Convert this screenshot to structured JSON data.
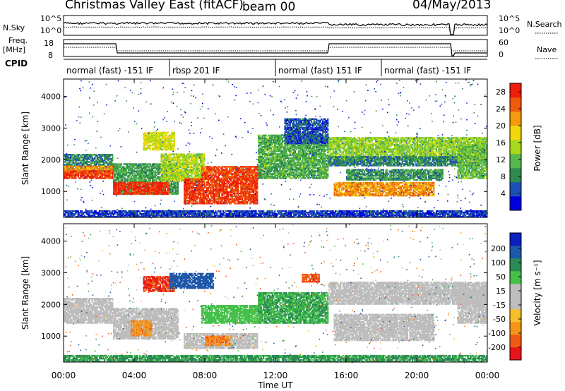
{
  "header": {
    "station": "Christmas Valley East (fitACF)",
    "beam": "beam 00",
    "date": "04/May/2013"
  },
  "panels": {
    "nsky_label": "N.Sky",
    "nsky_ticks": [
      "10^5",
      "10^0"
    ],
    "nsearch_label": "N.Search",
    "nsearch_ticks": [
      "10^5",
      "10^0"
    ],
    "freq_label": "Freq.",
    "freq_unit": "[MHz]",
    "freq_ticks": [
      "18",
      "8"
    ],
    "nave_label": "Nave",
    "nave_ticks": [
      "60",
      "0"
    ],
    "cpid_label": "CPID"
  },
  "modes": [
    {
      "label": "normal (fast) -151 IF",
      "start_h": 0,
      "end_h": 6
    },
    {
      "label": "rbsp 201 IF",
      "start_h": 6,
      "end_h": 12
    },
    {
      "label": "normal (fast) 151 IF",
      "start_h": 12,
      "end_h": 18
    },
    {
      "label": "normal (fast) -151 IF",
      "start_h": 18,
      "end_h": 24
    }
  ],
  "colors": {
    "power": [
      "#0000dd",
      "#1e4fb4",
      "#2f8a4f",
      "#57b84f",
      "#a8d81c",
      "#f0d80b",
      "#f39a0e",
      "#f05a0c",
      "#ee1e0c"
    ],
    "velocity": [
      "#e8141c",
      "#f05a16",
      "#f4951a",
      "#f6c02d",
      "#bdbdbd",
      "#bdbdbd",
      "#45c04b",
      "#2b8a55",
      "#1e58a8",
      "#0a20c0"
    ]
  },
  "chart_data": [
    {
      "type": "heatmap",
      "quantity": "power",
      "xlabel": "Time UT",
      "ylabel": "Slant Range [km]",
      "xlim": [
        0,
        24
      ],
      "ylim": [
        180,
        4550
      ],
      "yticks": [
        "1000",
        "2000",
        "3000",
        "4000"
      ],
      "colorbar": {
        "label": "Power [dB]",
        "ticks": [
          "4",
          "8",
          "12",
          "16",
          "20",
          "24",
          "28"
        ],
        "range": [
          0,
          30
        ]
      },
      "bands": [
        {
          "t0": 0.0,
          "t1": 2.8,
          "r0": 1600,
          "r1": 2200,
          "v": 8
        },
        {
          "t0": 0.0,
          "t1": 2.8,
          "r0": 1500,
          "r1": 1800,
          "v": 22
        },
        {
          "t0": 0.0,
          "t1": 2.8,
          "r0": 1400,
          "r1": 1650,
          "v": 27
        },
        {
          "t0": 2.8,
          "t1": 6.5,
          "r0": 900,
          "r1": 1900,
          "v": 10
        },
        {
          "t0": 2.8,
          "t1": 6.0,
          "r0": 900,
          "r1": 1300,
          "v": 28
        },
        {
          "t0": 4.5,
          "t1": 6.3,
          "r0": 2300,
          "r1": 2900,
          "v": 17
        },
        {
          "t0": 5.5,
          "t1": 8.0,
          "r0": 1300,
          "r1": 2200,
          "v": 15
        },
        {
          "t0": 7.8,
          "t1": 11.2,
          "r0": 1400,
          "r1": 1800,
          "v": 26
        },
        {
          "t0": 6.8,
          "t1": 11.0,
          "r0": 600,
          "r1": 1400,
          "v": 27
        },
        {
          "t0": 11.0,
          "t1": 15.0,
          "r0": 1400,
          "r1": 2800,
          "v": 11
        },
        {
          "t0": 12.5,
          "t1": 15.0,
          "r0": 2500,
          "r1": 3300,
          "v": 5
        },
        {
          "t0": 15.0,
          "t1": 24.0,
          "r0": 2000,
          "r1": 2700,
          "v": 14
        },
        {
          "t0": 15.0,
          "t1": 24.0,
          "r0": 1800,
          "r1": 2100,
          "v": 8
        },
        {
          "t0": 15.3,
          "t1": 21.0,
          "r0": 850,
          "r1": 1300,
          "v": 22
        },
        {
          "t0": 16.0,
          "t1": 21.5,
          "r0": 1350,
          "r1": 1700,
          "v": 9
        },
        {
          "t0": 22.3,
          "t1": 24.0,
          "r0": 1400,
          "r1": 2500,
          "v": 12
        },
        {
          "t0": 0.0,
          "t1": 24.0,
          "r0": 180,
          "r1": 400,
          "v": 4
        }
      ]
    },
    {
      "type": "heatmap",
      "quantity": "velocity",
      "xlabel": "Time UT",
      "ylabel": "Slant Range [km]",
      "xlim": [
        0,
        24
      ],
      "ylim": [
        180,
        4550
      ],
      "xticks": [
        "00:00",
        "04:00",
        "08:00",
        "12:00",
        "16:00",
        "20:00",
        "00:00"
      ],
      "yticks": [
        "1000",
        "2000",
        "3000",
        "4000"
      ],
      "colorbar": {
        "label": "Velocity [m s⁻¹]",
        "ticks": [
          "200",
          "100",
          "50",
          "15",
          "-15",
          "-50",
          "-100",
          "-200"
        ],
        "range": [
          -250,
          250
        ]
      },
      "bands": [
        {
          "t0": 0.0,
          "t1": 2.8,
          "r0": 1400,
          "r1": 2200,
          "v": 0
        },
        {
          "t0": 2.8,
          "t1": 6.5,
          "r0": 900,
          "r1": 1900,
          "v": 0
        },
        {
          "t0": 3.8,
          "t1": 5.0,
          "r0": 1000,
          "r1": 1500,
          "v": -80
        },
        {
          "t0": 4.5,
          "t1": 6.3,
          "r0": 2400,
          "r1": 2900,
          "v": -200
        },
        {
          "t0": 6.0,
          "t1": 8.5,
          "r0": 2500,
          "r1": 3000,
          "v": 150
        },
        {
          "t0": 7.8,
          "t1": 11.2,
          "r0": 1400,
          "r1": 2000,
          "v": 40
        },
        {
          "t0": 6.8,
          "t1": 11.0,
          "r0": 600,
          "r1": 1100,
          "v": 0
        },
        {
          "t0": 8.0,
          "t1": 9.5,
          "r0": 700,
          "r1": 1000,
          "v": -90
        },
        {
          "t0": 11.0,
          "t1": 15.0,
          "r0": 1400,
          "r1": 2400,
          "v": 45
        },
        {
          "t0": 13.5,
          "t1": 14.5,
          "r0": 2700,
          "r1": 2950,
          "v": -180
        },
        {
          "t0": 15.0,
          "t1": 24.0,
          "r0": 2000,
          "r1": 2700,
          "v": 0
        },
        {
          "t0": 15.3,
          "t1": 21.0,
          "r0": 850,
          "r1": 1700,
          "v": 0
        },
        {
          "t0": 22.3,
          "t1": 24.0,
          "r0": 1400,
          "r1": 2500,
          "v": 0
        },
        {
          "t0": 0.0,
          "t1": 24.0,
          "r0": 180,
          "r1": 400,
          "v": 60
        }
      ]
    }
  ]
}
